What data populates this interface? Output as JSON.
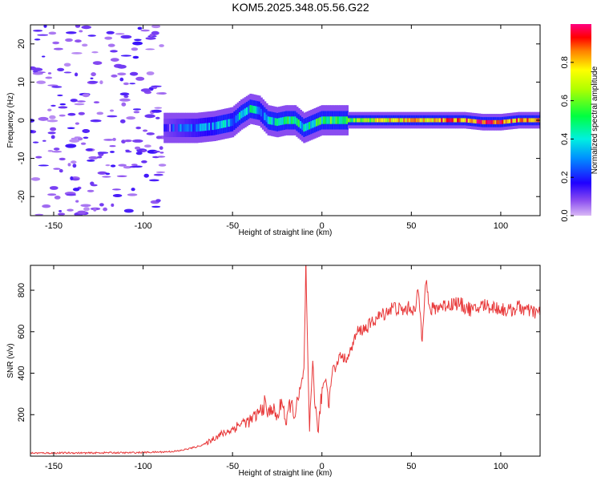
{
  "title": "KOM5.2025.348.05.56.G22",
  "chart_data": [
    {
      "type": "heatmap",
      "name": "spectrogram",
      "xlabel": "Height of straight line (km)",
      "ylabel": "Frequency (Hz)",
      "xlim": [
        -163,
        122
      ],
      "ylim": [
        -25,
        25
      ],
      "xticks": [
        -150,
        -100,
        -50,
        0,
        50,
        100
      ],
      "yticks": [
        -20,
        -10,
        0,
        10,
        20
      ],
      "ridge": {
        "x": [
          -88,
          -80,
          -70,
          -60,
          -55,
          -50,
          -45,
          -40,
          -35,
          -30,
          -25,
          -20,
          -15,
          -10,
          -5,
          0,
          10,
          20,
          30,
          40,
          50,
          60,
          70,
          80,
          90,
          100,
          110,
          122
        ],
        "freq": [
          -2,
          -2,
          -2,
          -1.5,
          -1,
          -0.5,
          1.5,
          3,
          2.5,
          0,
          -0.5,
          0,
          0,
          -2,
          -1,
          0,
          0,
          0,
          0,
          0,
          0,
          0,
          0,
          0,
          -0.5,
          -0.5,
          0,
          0
        ],
        "amplitude": [
          0.15,
          0.2,
          0.25,
          0.3,
          0.35,
          0.3,
          0.35,
          0.4,
          0.3,
          0.35,
          0.4,
          0.45,
          0.5,
          0.35,
          0.45,
          0.5,
          0.55,
          0.6,
          0.7,
          0.75,
          0.8,
          0.8,
          0.85,
          0.85,
          0.95,
          0.9,
          0.85,
          0.8
        ]
      },
      "noise_region": {
        "x_range": [
          -163,
          -88
        ],
        "freq_range": [
          -25,
          25
        ],
        "amplitude": 0.1
      }
    },
    {
      "type": "line",
      "name": "snr",
      "xlabel": "Height of straight line (km)",
      "ylabel": "SNR (v/v)",
      "xlim": [
        -163,
        122
      ],
      "ylim": [
        0,
        920
      ],
      "xticks": [
        -150,
        -100,
        -50,
        0,
        50,
        100
      ],
      "yticks": [
        200,
        400,
        600,
        800
      ],
      "color": "#e8393a",
      "series": [
        {
          "name": "SNR",
          "x": [
            -163,
            -150,
            -140,
            -130,
            -120,
            -110,
            -100,
            -90,
            -85,
            -80,
            -75,
            -70,
            -65,
            -60,
            -55,
            -50,
            -45,
            -40,
            -35,
            -32,
            -30,
            -28,
            -25,
            -22,
            -20,
            -18,
            -15,
            -12,
            -10,
            -9,
            -8,
            -7,
            -6,
            -5,
            -4,
            -2,
            0,
            2,
            4,
            6,
            8,
            10,
            12,
            15,
            18,
            20,
            25,
            30,
            35,
            40,
            45,
            50,
            52,
            54,
            56,
            57,
            58,
            60,
            65,
            70,
            75,
            80,
            85,
            90,
            95,
            100,
            105,
            110,
            115,
            122
          ],
          "y": [
            15,
            15,
            16,
            15,
            17,
            16,
            18,
            20,
            22,
            25,
            35,
            45,
            60,
            90,
            110,
            130,
            160,
            170,
            210,
            250,
            200,
            240,
            180,
            280,
            140,
            260,
            200,
            320,
            420,
            920,
            500,
            100,
            310,
            480,
            250,
            120,
            320,
            380,
            270,
            430,
            420,
            500,
            470,
            480,
            560,
            600,
            620,
            660,
            690,
            720,
            700,
            720,
            690,
            800,
            560,
            720,
            880,
            700,
            720,
            730,
            740,
            720,
            700,
            730,
            720,
            710,
            700,
            720,
            700,
            690
          ]
        }
      ]
    }
  ],
  "colorbar": {
    "label": "Normalized spectral amplitude",
    "range": [
      0,
      1
    ],
    "ticks": [
      "0.0",
      "0.2",
      "0.4",
      "0.6",
      "0.8"
    ],
    "tick_values": [
      0,
      0.2,
      0.4,
      0.6,
      0.8
    ]
  }
}
